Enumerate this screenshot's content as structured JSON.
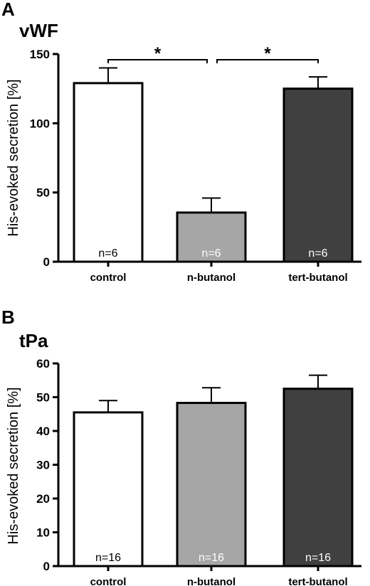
{
  "chart_data": [
    {
      "panel": "A",
      "type": "bar",
      "title": "vWF",
      "ylabel": "His-evoked secretion [%]",
      "xlabel": "",
      "categories": [
        "control",
        "n-butanol",
        "tert-butanol"
      ],
      "values": [
        129,
        35.5,
        125
      ],
      "errors": [
        11,
        10.5,
        8.5
      ],
      "n_labels": [
        "n=6",
        "n=6",
        "n=6"
      ],
      "colors": [
        "#ffffff",
        "#a6a6a6",
        "#404040"
      ],
      "n_label_colors": [
        "#000000",
        "#ffffff",
        "#ffffff"
      ],
      "ylim": [
        0,
        150
      ],
      "yticks": [
        0,
        50,
        100,
        150
      ],
      "significance": [
        {
          "from": 0,
          "to": 1,
          "label": "*"
        },
        {
          "from": 1,
          "to": 2,
          "label": "*"
        }
      ],
      "grid": false,
      "legend": "none"
    },
    {
      "panel": "B",
      "type": "bar",
      "title": "tPa",
      "ylabel": "His-evoked secretion [%]",
      "xlabel": "",
      "categories": [
        "control",
        "n-butanol",
        "tert-butanol"
      ],
      "values": [
        45.5,
        48.3,
        52.5
      ],
      "errors": [
        3.5,
        4.5,
        4
      ],
      "n_labels": [
        "n=16",
        "n=16",
        "n=16"
      ],
      "colors": [
        "#ffffff",
        "#a6a6a6",
        "#404040"
      ],
      "n_label_colors": [
        "#000000",
        "#ffffff",
        "#ffffff"
      ],
      "ylim": [
        0,
        60
      ],
      "yticks": [
        0,
        10,
        20,
        30,
        40,
        50,
        60
      ],
      "significance": [],
      "grid": false,
      "legend": "none"
    }
  ]
}
